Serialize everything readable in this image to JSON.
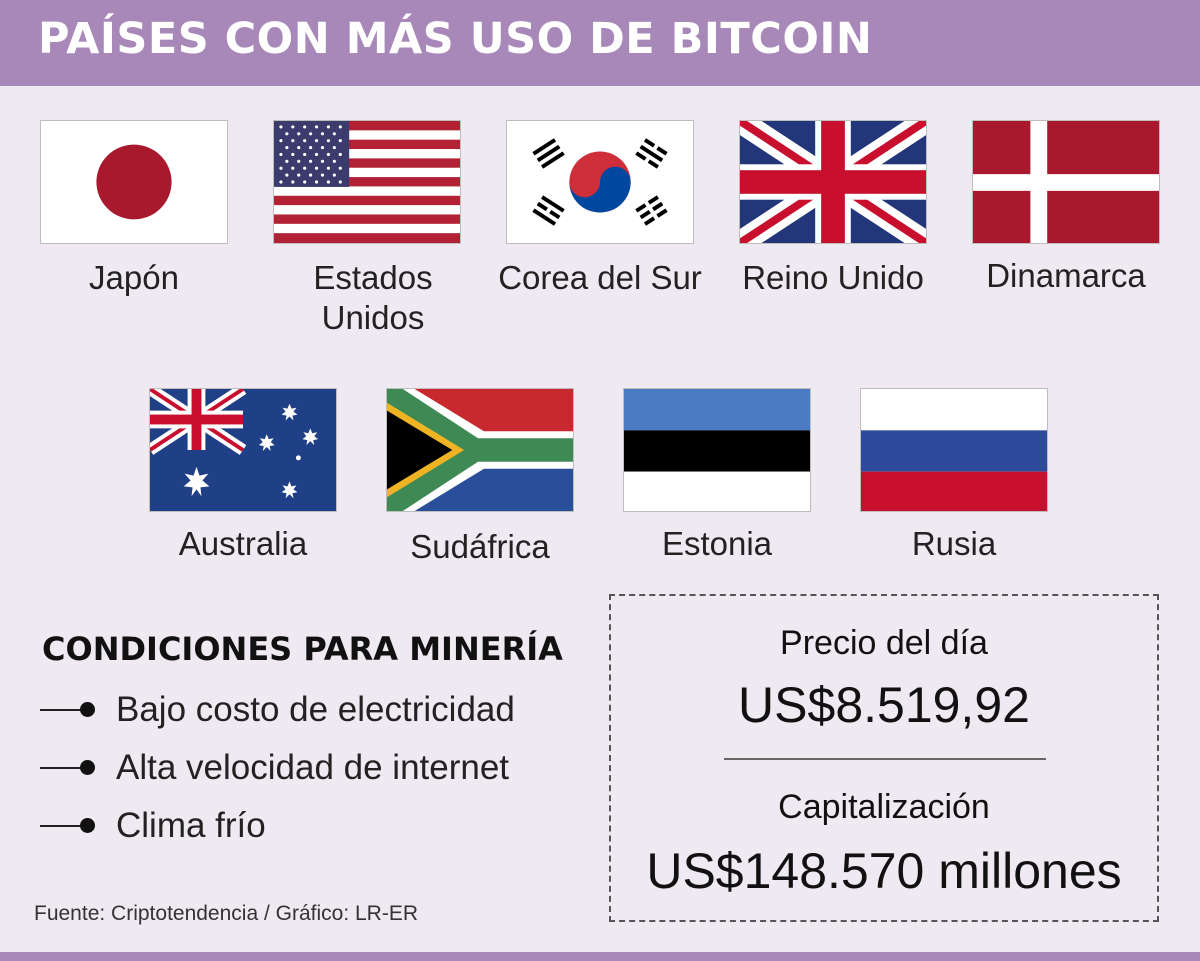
{
  "header": {
    "title": "PAÍSES CON MÁS USO DE BITCOIN"
  },
  "countries": [
    {
      "name": "Japón",
      "flag_icon": "japan-flag-icon"
    },
    {
      "name_line1": "Estados",
      "name_line2": "Unidos",
      "flag_icon": "usa-flag-icon"
    },
    {
      "name": "Corea del Sur",
      "flag_icon": "south-korea-flag-icon"
    },
    {
      "name": "Reino Unido",
      "flag_icon": "uk-flag-icon"
    },
    {
      "name": "Dinamarca",
      "flag_icon": "denmark-flag-icon"
    },
    {
      "name": "Australia",
      "flag_icon": "australia-flag-icon"
    },
    {
      "name": "Sudáfrica",
      "flag_icon": "south-africa-flag-icon"
    },
    {
      "name": "Estonia",
      "flag_icon": "estonia-flag-icon"
    },
    {
      "name": "Rusia",
      "flag_icon": "russia-flag-icon"
    }
  ],
  "conditions": {
    "title": "CONDICIONES PARA MINERÍA",
    "items": [
      "Bajo costo de electricidad",
      "Alta velocidad de internet",
      "Clima frío"
    ]
  },
  "price_box": {
    "price_label": "Precio del día",
    "price_value": "US$8.519,92",
    "cap_label": "Capitalización",
    "cap_value": "US$148.570 millones"
  },
  "source": "Fuente: Criptotendencia / Gráfico: LR-ER",
  "colors": {
    "header": "#a888b8",
    "background": "#efe9f2"
  }
}
